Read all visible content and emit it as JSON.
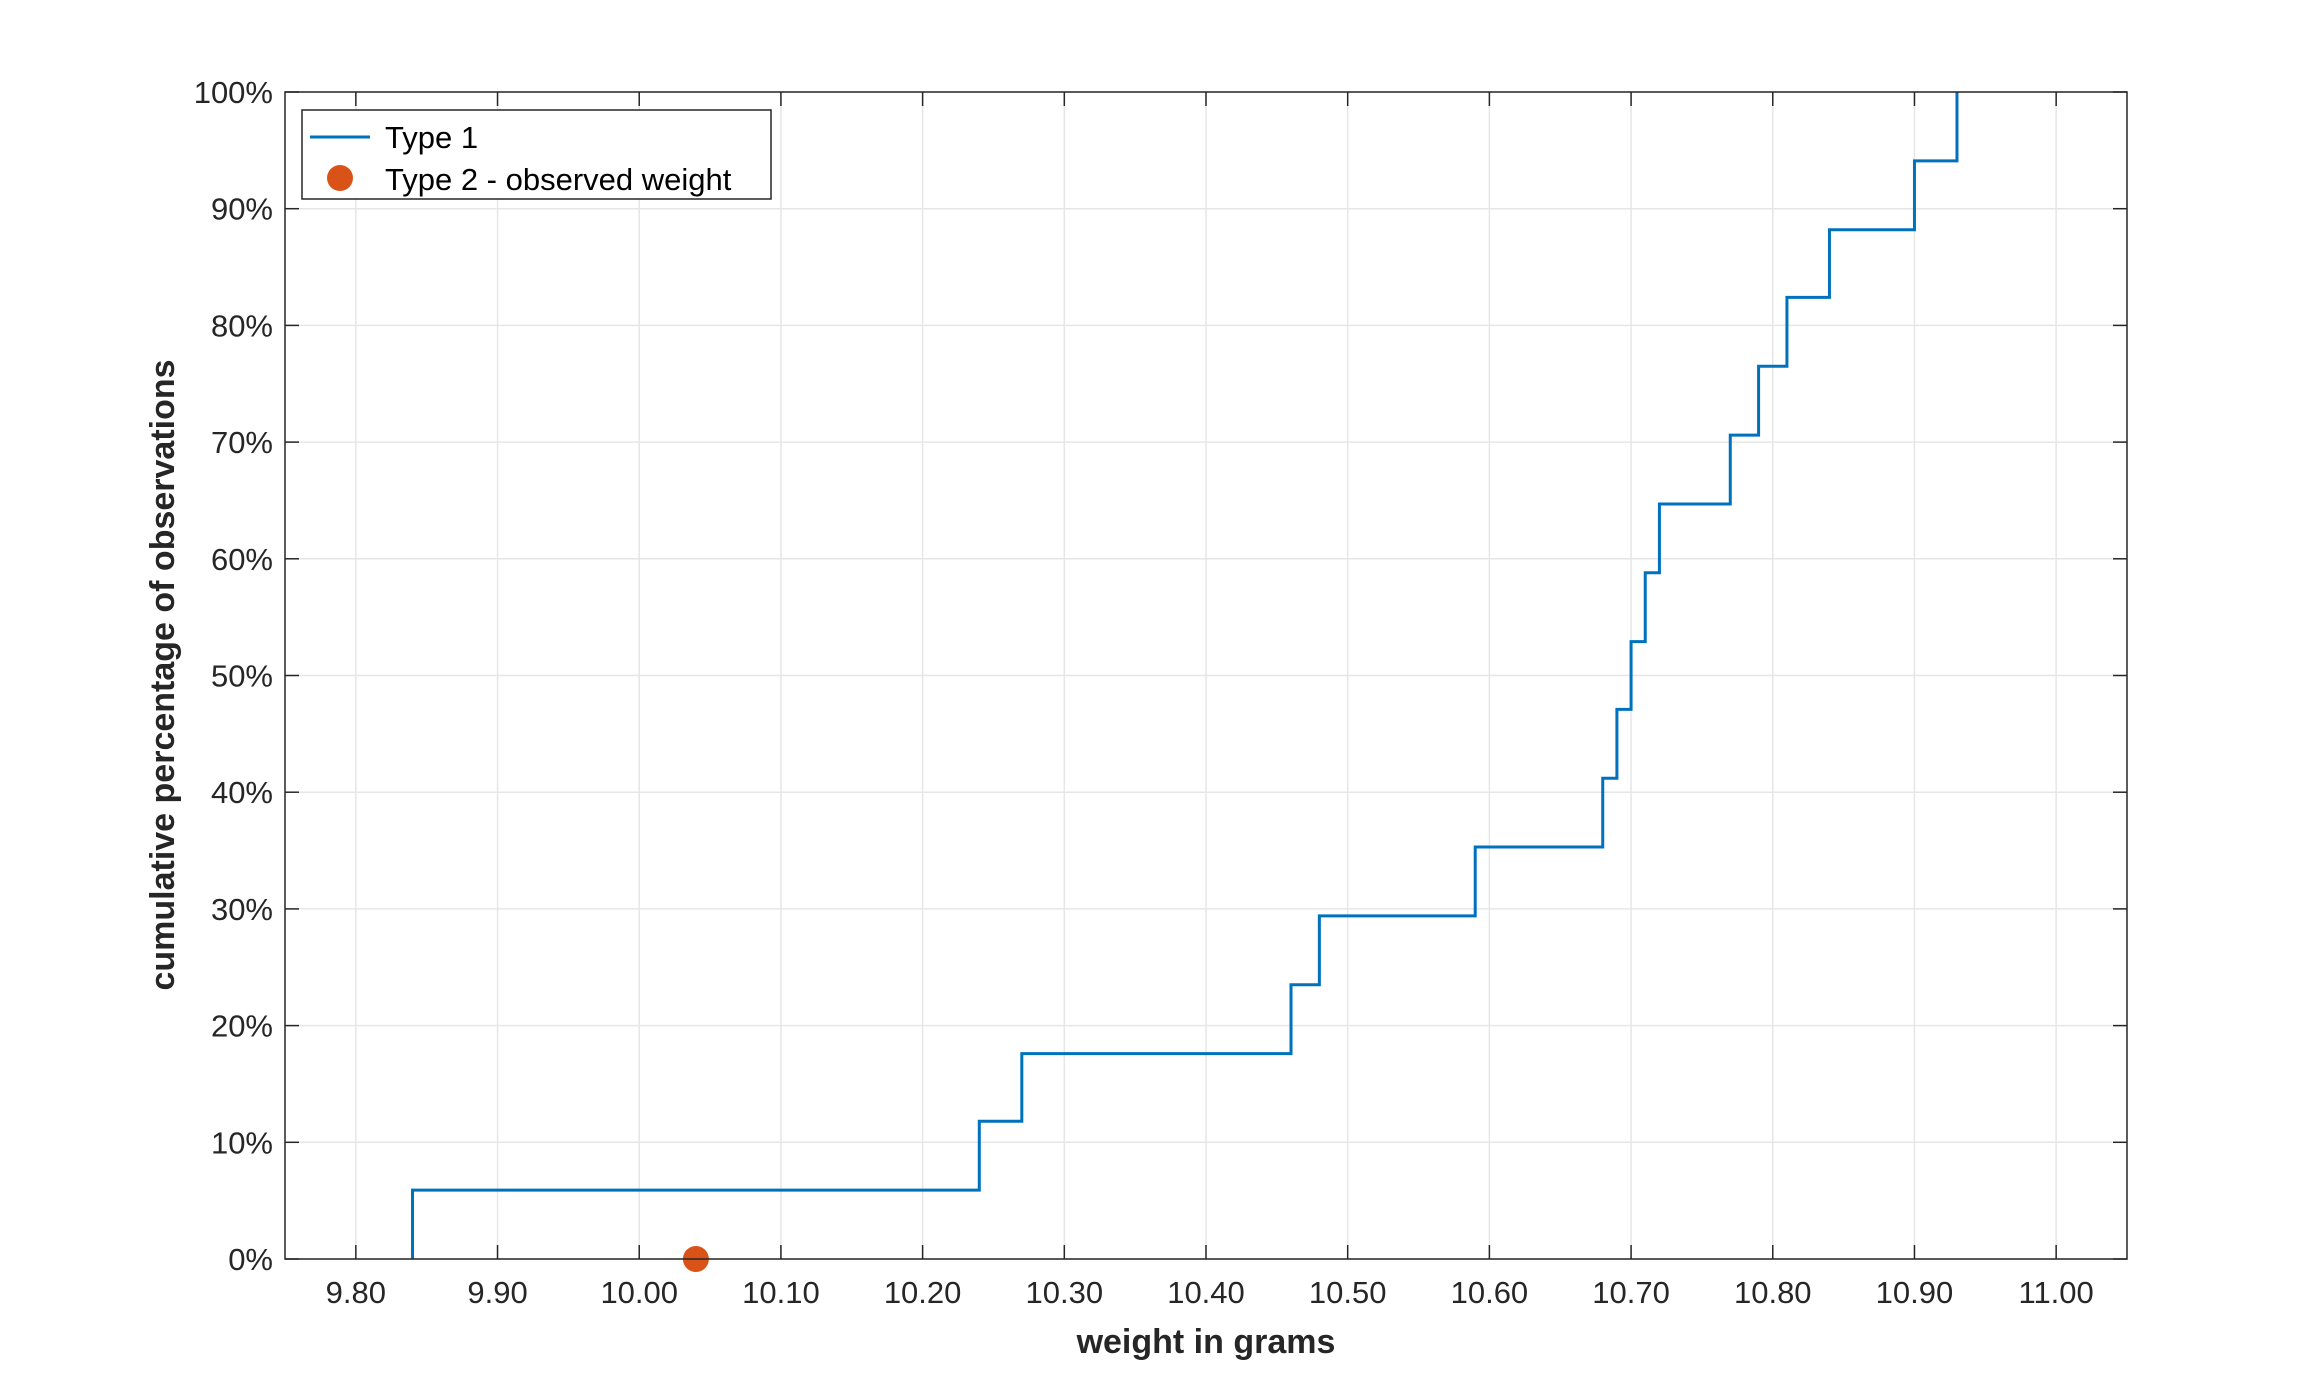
{
  "chart_data": {
    "type": "line",
    "xlabel": "weight in grams",
    "ylabel": "cumulative percentage of observations",
    "xlim": [
      9.75,
      11.05
    ],
    "ylim": [
      0,
      100
    ],
    "x_ticks": [
      9.8,
      9.9,
      10.0,
      10.1,
      10.2,
      10.3,
      10.4,
      10.5,
      10.6,
      10.7,
      10.8,
      10.9,
      11.0
    ],
    "x_tick_labels": [
      "9.80",
      "9.90",
      "10.00",
      "10.10",
      "10.20",
      "10.30",
      "10.40",
      "10.50",
      "10.60",
      "10.70",
      "10.80",
      "10.90",
      "11.00"
    ],
    "y_ticks": [
      0,
      10,
      20,
      30,
      40,
      50,
      60,
      70,
      80,
      90,
      100
    ],
    "y_tick_labels": [
      "0%",
      "10%",
      "20%",
      "30%",
      "40%",
      "50%",
      "60%",
      "70%",
      "80%",
      "90%",
      "100%"
    ],
    "grid": true,
    "legend_placement": "top-left",
    "series": [
      {
        "name": "Type 1",
        "style": "step",
        "color": "#0072BD",
        "x": [
          9.84,
          10.24,
          10.27,
          10.46,
          10.48,
          10.59,
          10.68,
          10.69,
          10.7,
          10.71,
          10.72,
          10.77,
          10.79,
          10.81,
          10.84,
          10.9,
          10.93
        ],
        "y": [
          5.9,
          11.8,
          17.6,
          23.5,
          29.4,
          35.3,
          41.2,
          47.1,
          52.9,
          58.8,
          64.7,
          70.6,
          76.5,
          82.4,
          88.2,
          94.1,
          100.0
        ]
      },
      {
        "name": "Type 2 - observed weight",
        "style": "marker",
        "color": "#D95319",
        "x": [
          10.04
        ],
        "y": [
          0
        ]
      }
    ]
  }
}
